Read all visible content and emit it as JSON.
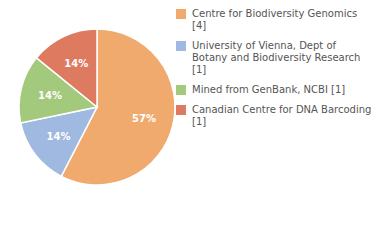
{
  "chart_data": {
    "type": "pie",
    "categories": [
      "Centre for Biodiversity Genomics [4]",
      "University of Vienna, Dept of Botany and Biodiversity Research [1]",
      "Mined from GenBank, NCBI [1]",
      "Canadian Centre for DNA Barcoding [1]"
    ],
    "values": [
      57,
      14,
      14,
      14
    ],
    "value_labels": [
      "57%",
      "14%",
      "14%",
      "14%"
    ],
    "colors": [
      "#f0aa6e",
      "#a0b9e0",
      "#a3c97c",
      "#de7a5f"
    ],
    "data_labels": true
  }
}
